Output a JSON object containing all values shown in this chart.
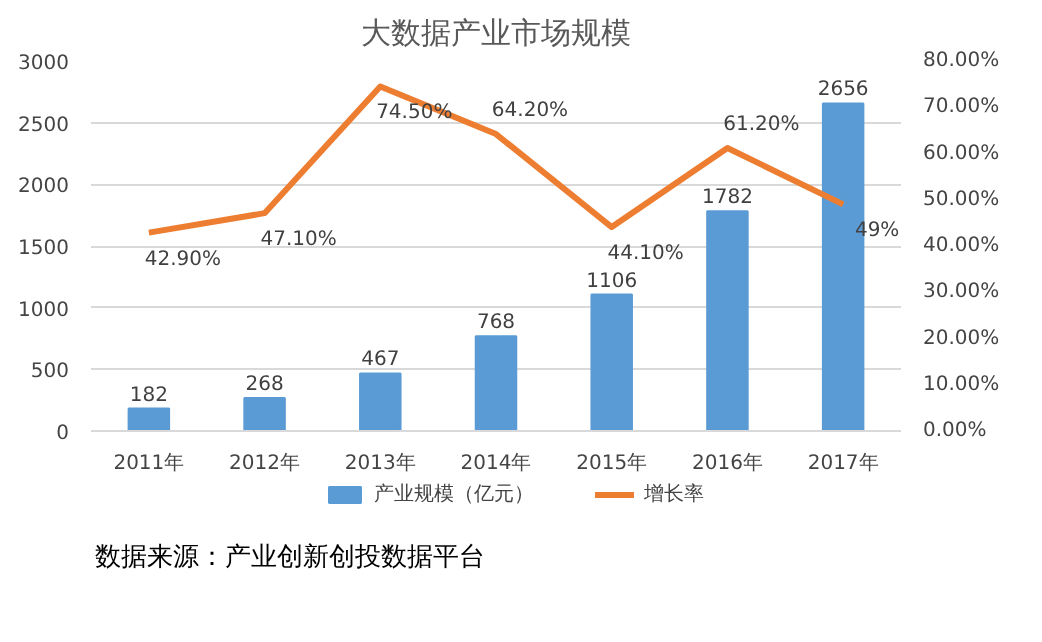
{
  "chart_data": {
    "type": "bar",
    "title": "大数据产业市场规模",
    "categories": [
      "2011年",
      "2012年",
      "2013年",
      "2014年",
      "2015年",
      "2016年",
      "2017年"
    ],
    "series": [
      {
        "name": "产业规模（亿元）",
        "color": "#5b9bd5",
        "values": [
          182,
          268,
          467,
          768,
          1106,
          1782,
          2656
        ]
      },
      {
        "name": "增长率",
        "type": "line",
        "axis": "y2",
        "color": "#ed7d31",
        "values": [
          42.9,
          47.1,
          74.5,
          64.2,
          44.1,
          61.2,
          49
        ],
        "value_labels": [
          "42.90%",
          "47.10%",
          "74.50%",
          "64.20%",
          "44.10%",
          "61.20%",
          "49%"
        ]
      }
    ],
    "data_labels": true,
    "ylim": [
      0,
      3000
    ],
    "yticks": [
      0,
      500,
      1000,
      1500,
      2000,
      2500,
      3000
    ],
    "y2lim": [
      0,
      80
    ],
    "y2ticks": [
      {
        "value": 0,
        "label": "0.00%"
      },
      {
        "value": 10,
        "label": "10.00%"
      },
      {
        "value": 20,
        "label": "20.00%"
      },
      {
        "value": 30,
        "label": "30.00%"
      },
      {
        "value": 40,
        "label": "40.00%"
      },
      {
        "value": 50,
        "label": "50.00%"
      },
      {
        "value": 60,
        "label": "60.00%"
      },
      {
        "value": 70,
        "label": "70.00%"
      },
      {
        "value": 80,
        "label": "80.00%"
      }
    ],
    "grid": "y",
    "legend": "bottom",
    "annotations": [
      "数据来源：产业创新创投数据平台"
    ]
  }
}
